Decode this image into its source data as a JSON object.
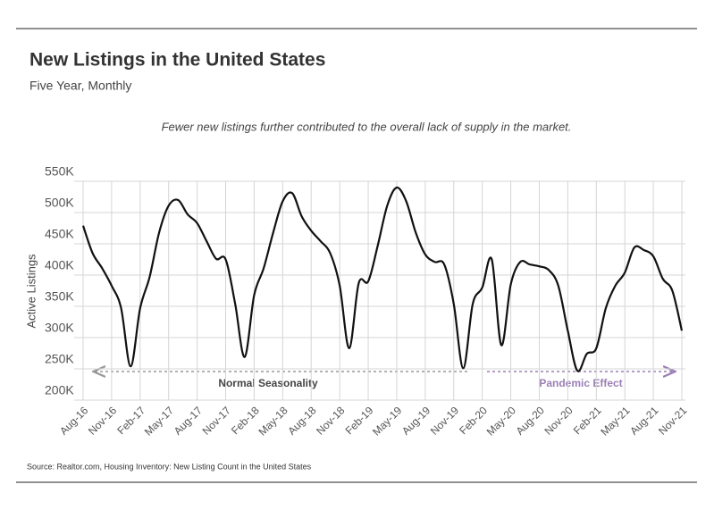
{
  "chart_data": {
    "type": "line",
    "title": "New Listings in the United States",
    "subtitle": "Five Year, Monthly",
    "note": "Fewer new listings further contributed to the overall lack of supply in the market.",
    "y_label": "Active Listings",
    "source": "Source:  Realtor.com, Housing Inventory: New Listing Count in the United States",
    "annotations": [
      "Normal Seasonality",
      "Pandemic Effect"
    ],
    "categories": [
      "Aug-16",
      null,
      null,
      "Nov-16",
      null,
      null,
      "Feb-17",
      null,
      null,
      "May-17",
      null,
      null,
      "Aug-17",
      null,
      null,
      "Nov-17",
      null,
      null,
      "Feb-18",
      null,
      null,
      "May-18",
      null,
      null,
      "Aug-18",
      null,
      null,
      "Nov-18",
      null,
      null,
      "Feb-19",
      null,
      null,
      "May-19",
      null,
      null,
      "Aug-19",
      null,
      null,
      "Nov-19",
      null,
      null,
      "Feb-20",
      null,
      null,
      "May-20",
      null,
      null,
      "Aug-20",
      null,
      null,
      "Nov-20",
      null,
      null,
      "Feb-21",
      null,
      null,
      "May-21",
      null,
      null,
      "Aug-21",
      null,
      null,
      "Nov-21"
    ],
    "values": [
      479000,
      435000,
      411000,
      383000,
      347000,
      254000,
      347000,
      397000,
      468000,
      511000,
      520000,
      497000,
      483000,
      454000,
      426000,
      425000,
      354000,
      269000,
      368000,
      411000,
      468000,
      518000,
      531000,
      494000,
      471000,
      454000,
      435000,
      383000,
      283000,
      387000,
      390000,
      447000,
      511000,
      540000,
      518000,
      468000,
      433000,
      421000,
      417000,
      354000,
      251000,
      354000,
      380000,
      425000,
      288000,
      385000,
      421000,
      417000,
      414000,
      408000,
      383000,
      311000,
      247000,
      274000,
      283000,
      347000,
      383000,
      404000,
      444000,
      440000,
      430000,
      394000,
      375000,
      311000
    ],
    "color": "#111111",
    "ylim": [
      200000,
      550000
    ],
    "yticks": [
      {
        "value": 200000,
        "label": "200K"
      },
      {
        "value": 250000,
        "label": "250K"
      },
      {
        "value": 300000,
        "label": "300K"
      },
      {
        "value": 350000,
        "label": "350K"
      },
      {
        "value": 400000,
        "label": "400K"
      },
      {
        "value": 450000,
        "label": "450K"
      },
      {
        "value": 500000,
        "label": "500K"
      },
      {
        "value": 550000,
        "label": "550K"
      }
    ],
    "grid": true
  }
}
